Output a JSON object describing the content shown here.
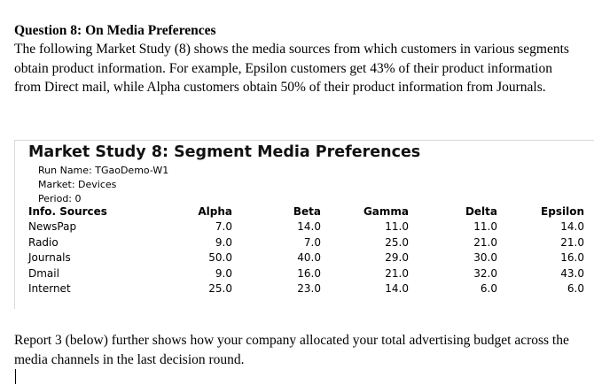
{
  "question": {
    "title": "Question 8: On Media Preferences",
    "body": "The following Market Study (8) shows the media sources from which customers in various segments obtain product information.  For example, Epsilon customers get 43% of their product information from Direct mail, while Alpha customers obtain 50% of their product information from Journals."
  },
  "market_study": {
    "title": "Market Study 8: Segment Media Preferences",
    "run_name": "Run Name: TGaoDemo-W1",
    "market": "Market: Devices",
    "period": "Period: 0",
    "columns": [
      "Info. Sources",
      "Alpha",
      "Beta",
      "Gamma",
      "Delta",
      "Epsilon"
    ],
    "rows": [
      [
        "NewsPap",
        "7.0",
        "14.0",
        "11.0",
        "11.0",
        "14.0"
      ],
      [
        "Radio",
        "9.0",
        "7.0",
        "25.0",
        "21.0",
        "21.0"
      ],
      [
        "Journals",
        "50.0",
        "40.0",
        "29.0",
        "30.0",
        "16.0"
      ],
      [
        "Dmail",
        "9.0",
        "16.0",
        "21.0",
        "32.0",
        "43.0"
      ],
      [
        "Internet",
        "25.0",
        "23.0",
        "14.0",
        "6.0",
        "6.0"
      ]
    ]
  },
  "report_text": "Report 3 (below) further shows how your company allocated your total advertising budget across the media channels in the last decision round."
}
